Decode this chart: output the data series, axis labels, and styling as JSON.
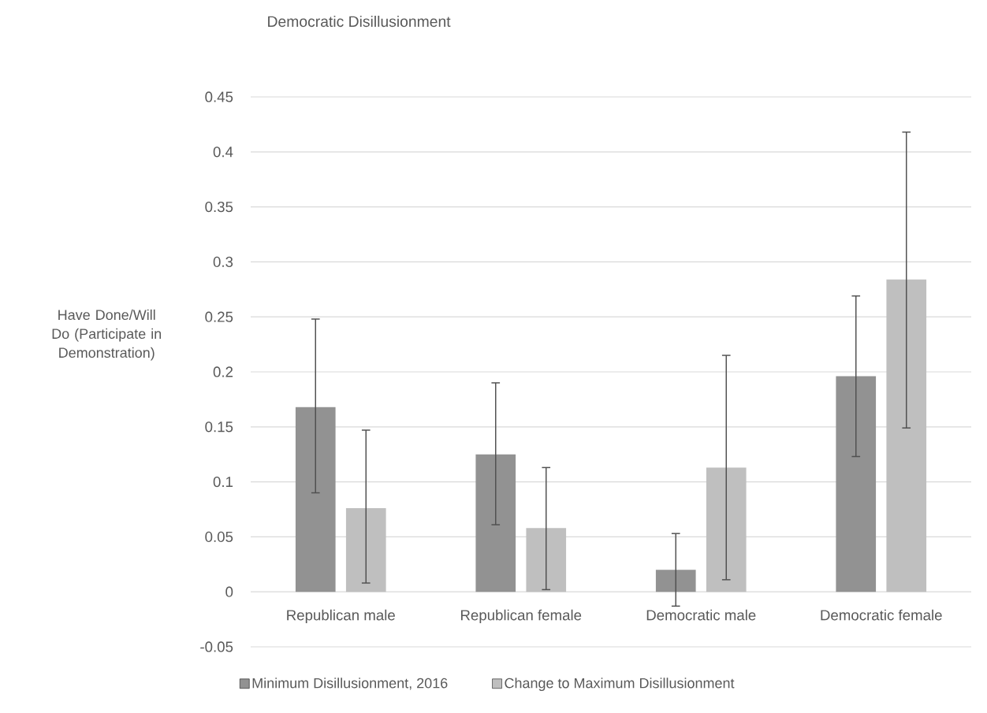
{
  "chart_data": {
    "type": "bar",
    "title": "Democratic Disillusionment",
    "ylabel": "Have Done/Will Do (Participate in Demonstration)",
    "categories": [
      "Republican male",
      "Republican female",
      "Democratic male",
      "Democratic female"
    ],
    "series": [
      {
        "name": "Minimum Disillusionment, 2016",
        "color": "#929292",
        "values": [
          0.168,
          0.125,
          0.02,
          0.196
        ],
        "errors": [
          [
            0.09,
            0.248
          ],
          [
            0.061,
            0.19
          ],
          [
            -0.013,
            0.053
          ],
          [
            0.123,
            0.269
          ]
        ]
      },
      {
        "name": "Change to Maximum Disillusionment",
        "color": "#bfbfbf",
        "values": [
          0.076,
          0.058,
          0.113,
          0.284
        ],
        "errors": [
          [
            0.008,
            0.147
          ],
          [
            0.002,
            0.113
          ],
          [
            0.011,
            0.215
          ],
          [
            0.149,
            0.418
          ]
        ]
      }
    ],
    "ylim": [
      -0.05,
      0.45
    ],
    "yticks": [
      -0.05,
      0,
      0.05,
      0.1,
      0.15,
      0.2,
      0.25,
      0.3,
      0.35,
      0.4,
      0.45
    ],
    "grid": "y",
    "legend": "bottom"
  }
}
